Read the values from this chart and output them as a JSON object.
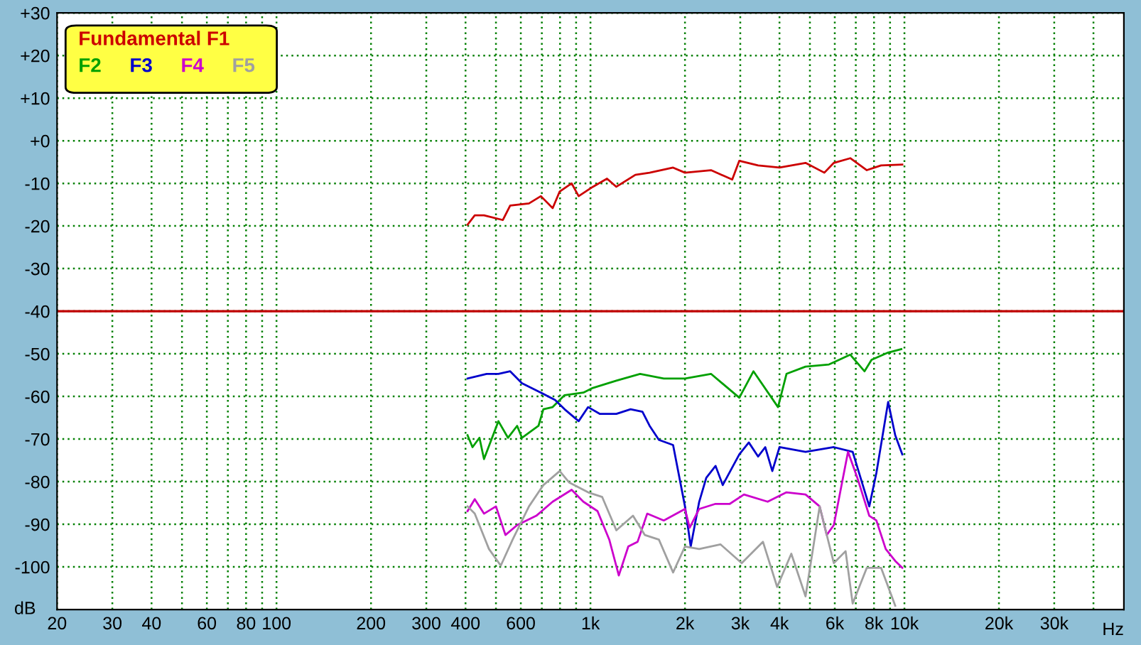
{
  "chart_data": {
    "type": "line",
    "xlabel": "Hz",
    "ylabel": "dB",
    "log": "x",
    "grid": true,
    "legend": "top left",
    "line_style": "solid",
    "marker": "none",
    "xlim": [
      20,
      50000
    ],
    "ylim": [
      -110,
      30
    ],
    "xticks": [
      20,
      30,
      40,
      {
        "value": 50,
        "label": null
      },
      60,
      {
        "value": 70,
        "label": null
      },
      80,
      {
        "value": 90,
        "label": null
      },
      100,
      200,
      300,
      400,
      {
        "value": 500,
        "label": null
      },
      600,
      {
        "value": 700,
        "label": null
      },
      {
        "value": 800,
        "label": null
      },
      {
        "value": 900,
        "label": null
      },
      {
        "value": 1000,
        "label": "1k"
      },
      {
        "value": 2000,
        "label": "2k"
      },
      {
        "value": 3000,
        "label": "3k"
      },
      {
        "value": 4000,
        "label": "4k"
      },
      {
        "value": 5000,
        "label": null
      },
      {
        "value": 6000,
        "label": "6k"
      },
      {
        "value": 7000,
        "label": null
      },
      {
        "value": 8000,
        "label": "8k"
      },
      {
        "value": 9000,
        "label": null
      },
      {
        "value": 10000,
        "label": "10k"
      },
      {
        "value": 20000,
        "label": "20k"
      },
      {
        "value": 30000,
        "label": "30k"
      },
      {
        "value": 40000,
        "label": null
      }
    ],
    "yticks": [
      {
        "value": -100,
        "label": "-100"
      },
      -90,
      -80,
      -70,
      -60,
      -50,
      -40,
      -30,
      -20,
      -10,
      {
        "value": 0,
        "label": "+0"
      },
      {
        "value": 10,
        "label": "+10"
      },
      {
        "value": 20,
        "label": "+20"
      },
      {
        "value": 30,
        "label": "+30"
      }
    ],
    "ref_lines": [
      {
        "axis": "y",
        "value": -40,
        "color": "#c00000",
        "line_style": "solid"
      }
    ],
    "series": [
      {
        "name": "Fundamental F1",
        "color": "#cc0000",
        "x": [
          406,
          428,
          458,
          526,
          555,
          637,
          695,
          758,
          798,
          871,
          917,
          1018,
          1129,
          1209,
          1390,
          1543,
          1833,
          2000,
          2420,
          2828,
          2979,
          3420,
          4000,
          4842,
          5558,
          5957,
          6722,
          7590,
          8425,
          9845
        ],
        "values": [
          -19.7,
          -17.5,
          -17.5,
          -18.6,
          -15.2,
          -14.7,
          -13,
          -15.8,
          -11.9,
          -10,
          -13,
          -10.8,
          -8.9,
          -10.8,
          -8,
          -7.5,
          -6.3,
          -7.5,
          -6.9,
          -9.1,
          -4.7,
          -5.8,
          -6.3,
          -5.2,
          -7.5,
          -5.2,
          -4.1,
          -6.9,
          -5.8,
          -5.6
        ]
      },
      {
        "name": "F2",
        "color": "#00a000",
        "x": [
          406,
          421,
          443,
          458,
          509,
          546,
          584,
          605,
          683,
          708,
          758,
          827,
          949,
          1018,
          1209,
          1439,
          1712,
          2000,
          2420,
          2979,
          3305,
          3957,
          4211,
          4842,
          5751,
          6722,
          7460,
          7858,
          8874,
          9775
        ],
        "values": [
          -69.1,
          -71.9,
          -69.7,
          -74.7,
          -65.8,
          -69.7,
          -66.9,
          -69.7,
          -66.9,
          -63,
          -62.5,
          -59.7,
          -59.1,
          -58,
          -56.3,
          -54.7,
          -55.8,
          -55.8,
          -54.7,
          -60.3,
          -54.1,
          -62.5,
          -54.7,
          -53,
          -52.5,
          -50.2,
          -54.1,
          -51.4,
          -49.7,
          -48.9
        ]
      },
      {
        "name": "F3",
        "color": "#0000cc",
        "x": [
          406,
          467,
          509,
          555,
          605,
          695,
          771,
          827,
          917,
          983,
          1072,
          1209,
          1342,
          1464,
          1543,
          1652,
          1833,
          2000,
          2086,
          2220,
          2338,
          2503,
          2638,
          2979,
          3194,
          3420,
          3603,
          3795,
          4000,
          4842,
          5957,
          6841,
          7727,
          8139,
          8874,
          9348,
          9845
        ],
        "values": [
          -55.8,
          -54.7,
          -54.7,
          -54.1,
          -56.9,
          -59.1,
          -60.8,
          -63,
          -65.8,
          -62.5,
          -64.1,
          -64.1,
          -63,
          -63.6,
          -66.9,
          -70.2,
          -71.4,
          -85.8,
          -95.2,
          -84.7,
          -79.1,
          -76.3,
          -80.8,
          -73.6,
          -70.8,
          -74.1,
          -71.9,
          -77.5,
          -71.9,
          -73,
          -71.9,
          -73,
          -85.8,
          -78,
          -61.3,
          -69.1,
          -73.6
        ]
      },
      {
        "name": "F4",
        "color": "#cc00cc",
        "x": [
          406,
          428,
          458,
          500,
          536,
          584,
          672,
          758,
          871,
          949,
          1053,
          1148,
          1231,
          1320,
          1413,
          1516,
          1712,
          2000,
          2070,
          2220,
          2503,
          2779,
          3083,
          3667,
          4211,
          4842,
          5370,
          5656,
          5957,
          6612,
          7080,
          7727,
          8139,
          8719,
          9348,
          9845
        ],
        "values": [
          -86.9,
          -84.1,
          -87.5,
          -85.8,
          -92.5,
          -90.2,
          -88,
          -84.7,
          -81.9,
          -84.7,
          -86.9,
          -93.6,
          -102,
          -95.2,
          -94.1,
          -87.5,
          -89.1,
          -86.4,
          -90.8,
          -86.4,
          -85.2,
          -85.2,
          -83,
          -84.7,
          -82.5,
          -83,
          -85.8,
          -92.5,
          -90.2,
          -73,
          -79.1,
          -88,
          -89.1,
          -95.8,
          -98.6,
          -100.2
        ]
      },
      {
        "name": "F5",
        "color": "#a0a0a0",
        "x": [
          406,
          428,
          475,
          518,
          565,
          637,
          708,
          798,
          856,
          983,
          1090,
          1209,
          1366,
          1489,
          1652,
          1833,
          2000,
          2220,
          2594,
          3032,
          3543,
          3932,
          4362,
          4842,
          5370,
          5957,
          6495,
          6841,
          7590,
          8425,
          9348
        ],
        "values": [
          -85.8,
          -87.5,
          -95.8,
          -99.7,
          -93.6,
          -85.8,
          -80.8,
          -77.5,
          -80.2,
          -82.5,
          -83.6,
          -91.4,
          -88,
          -92.5,
          -93.6,
          -101.3,
          -95.2,
          -95.8,
          -94.7,
          -99.1,
          -94.1,
          -104.7,
          -96.9,
          -106.9,
          -85.8,
          -99.1,
          -96.3,
          -108.6,
          -100.2,
          -100.2,
          -109.1
        ]
      }
    ]
  }
}
